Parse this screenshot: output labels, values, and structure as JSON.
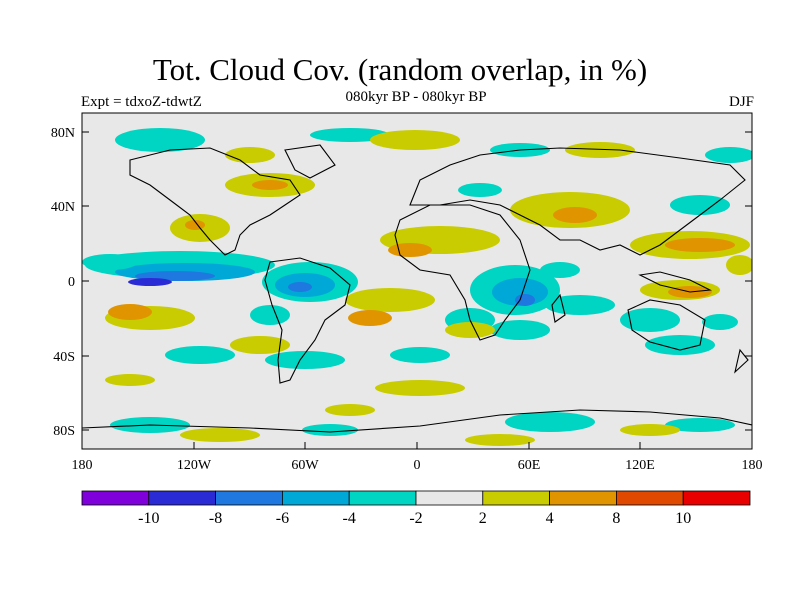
{
  "title": "Tot. Cloud Cov. (random overlap, in %)",
  "subtitle": "080kyr BP - 080kyr BP",
  "experiment": "Expt = tdxoZ-tdwtZ",
  "season": "DJF",
  "axes": {
    "lat_ticks": [
      "80N",
      "40N",
      "0",
      "40S",
      "80S"
    ],
    "lon_ticks": [
      "180",
      "120W",
      "60W",
      "0",
      "60E",
      "120E",
      "180"
    ]
  },
  "colorbar": {
    "colors": [
      "#7F00DB",
      "#2B2BD6",
      "#1F77E0",
      "#00A8D8",
      "#00D4C2",
      "#E8E8E8",
      "#C8CC00",
      "#E09400",
      "#E04A00",
      "#E80000"
    ],
    "labels": [
      "-10",
      "-8",
      "-6",
      "-4",
      "-2",
      "2",
      "4",
      "8",
      "10"
    ]
  },
  "map": {
    "background": "#E8E8E8",
    "lon_range": [
      -180,
      180
    ],
    "lat_range": [
      -90,
      90
    ]
  }
}
